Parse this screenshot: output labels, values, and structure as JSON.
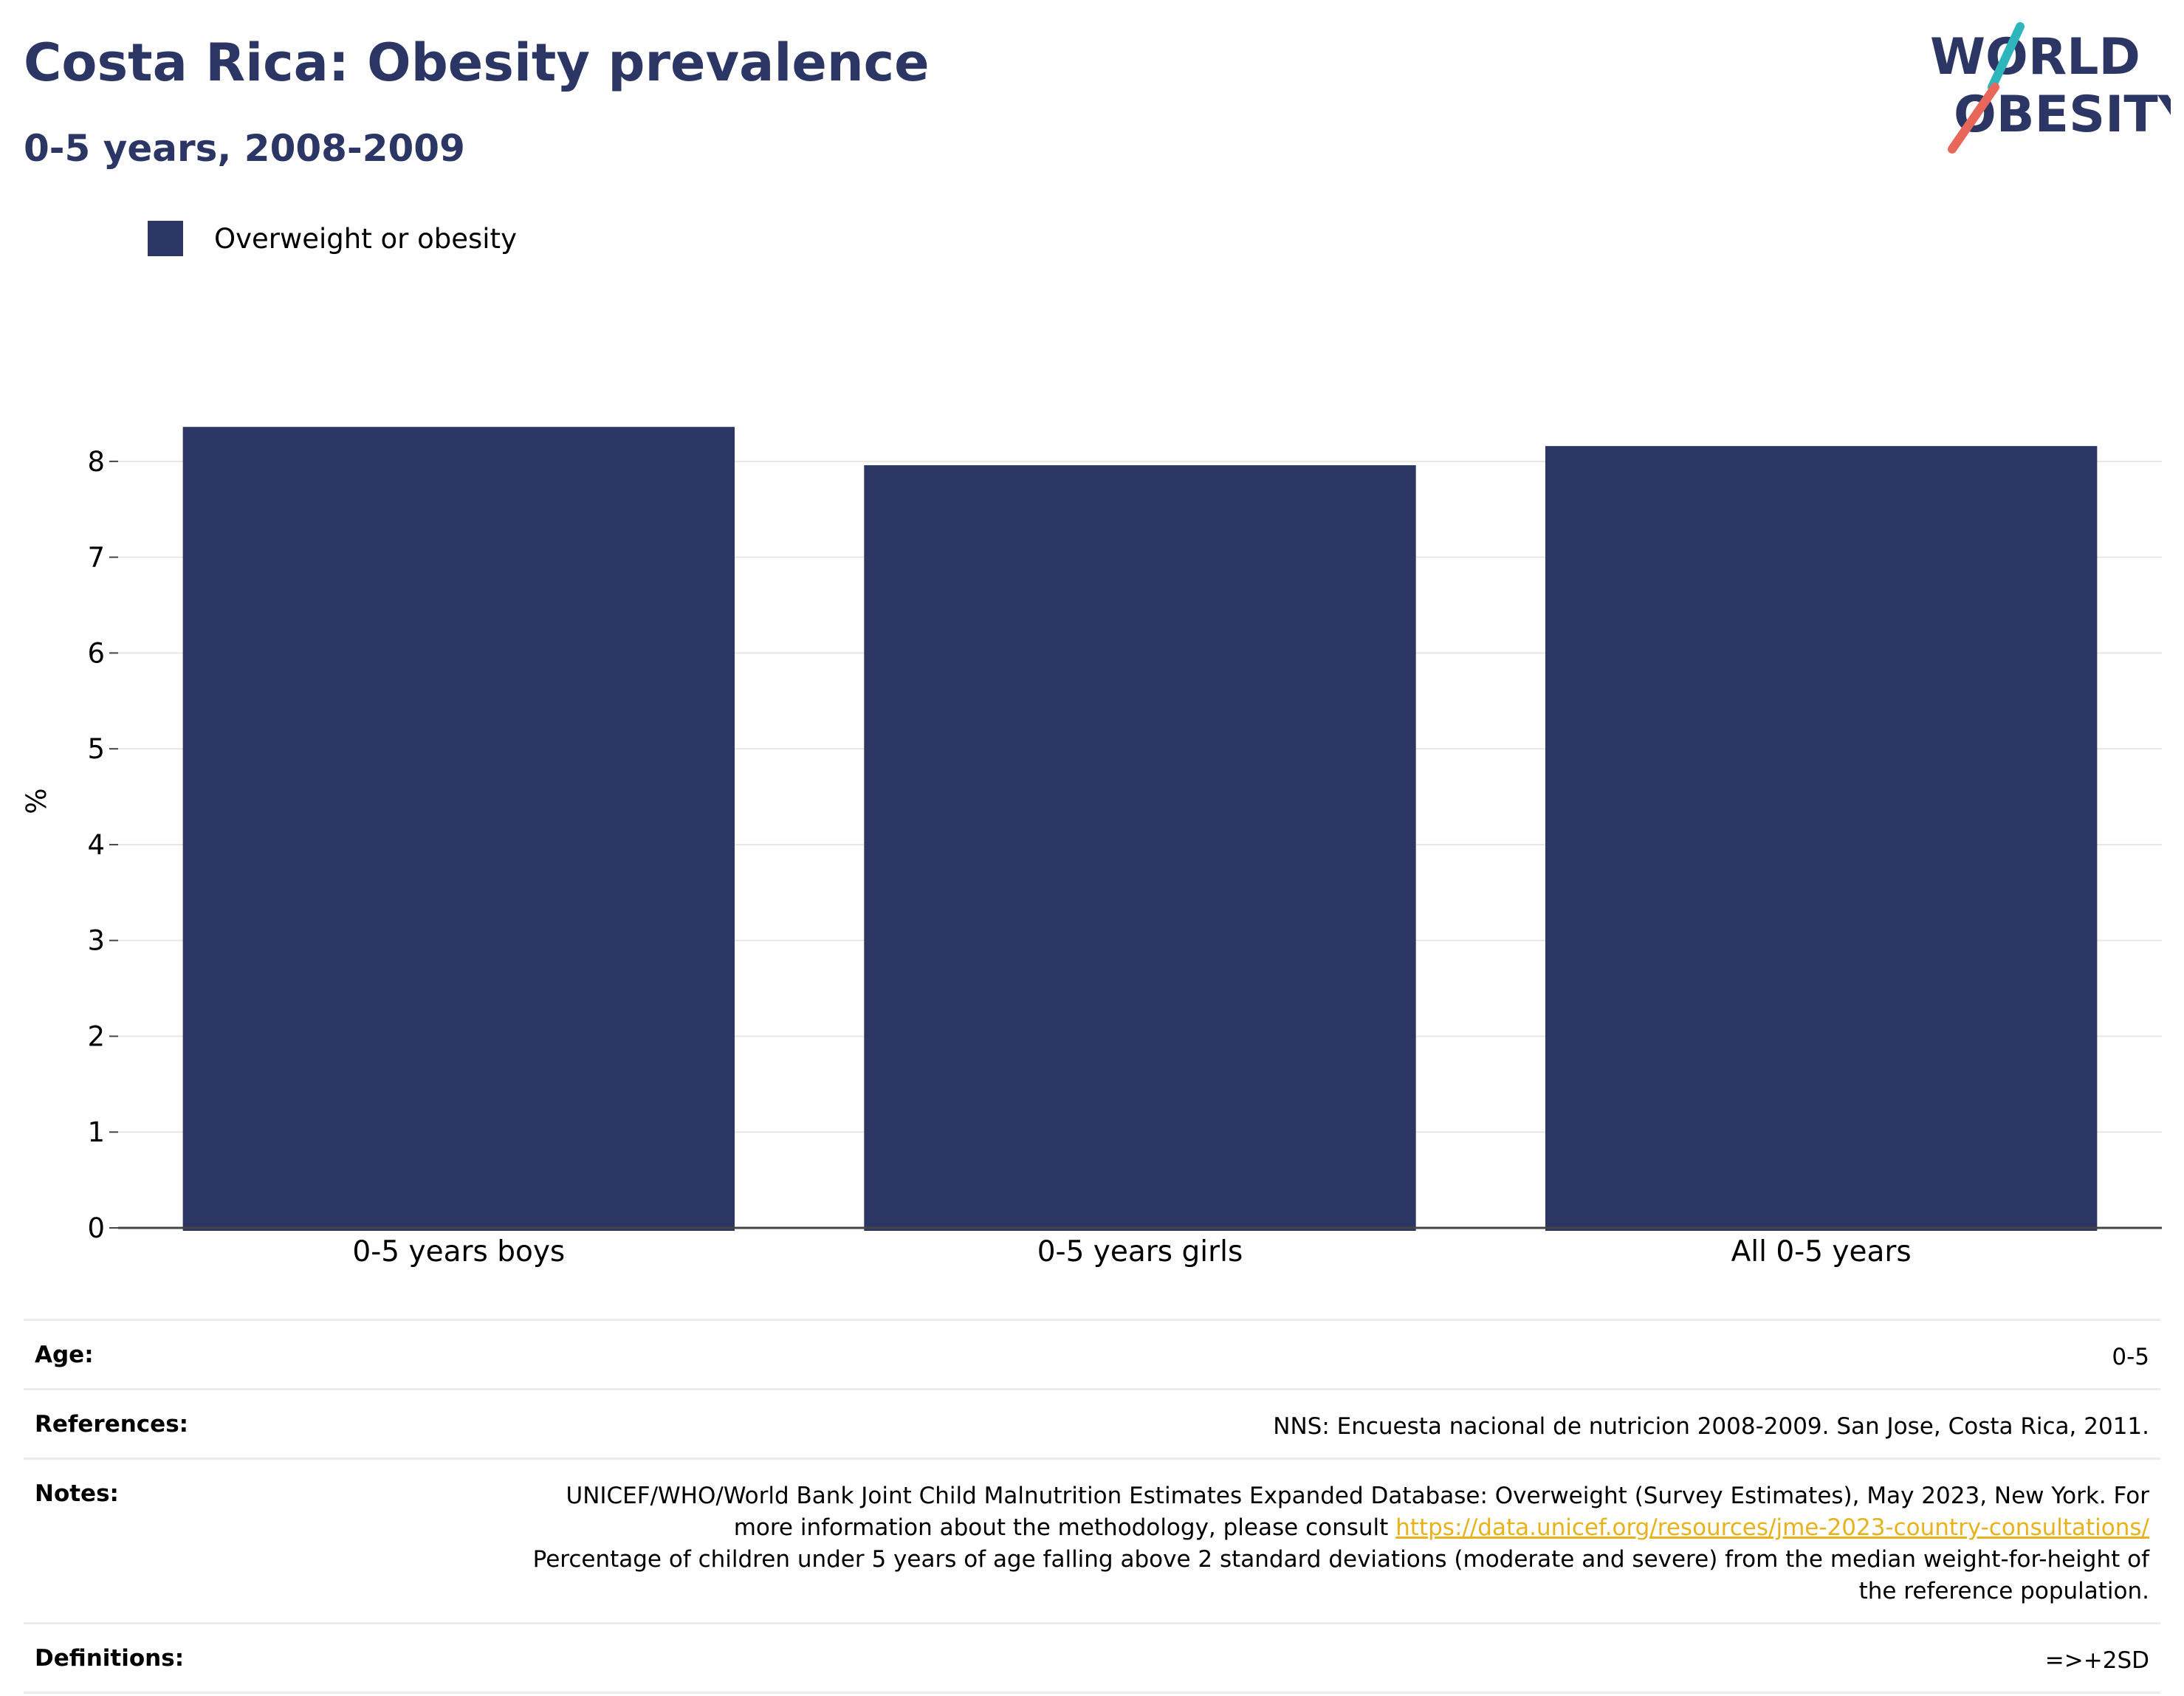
{
  "header": {
    "title": "Costa Rica: Obesity prevalence",
    "subtitle": "0-5 years, 2008-2009"
  },
  "logo": {
    "line1": "WORLD",
    "line2": "OBESITY",
    "slash_colors": [
      "#2fb6bc",
      "#e8675a"
    ]
  },
  "legend": {
    "label": "Overweight or obesity",
    "color": "#2b3665"
  },
  "chart_data": {
    "type": "bar",
    "categories": [
      "0-5 years boys",
      "0-5 years girls",
      "All 0-5 years"
    ],
    "series": [
      {
        "name": "Overweight or obesity",
        "values": [
          8.36,
          7.96,
          8.16
        ],
        "color": "#2b3665"
      }
    ],
    "ylabel": "%",
    "xlabel": "",
    "ylim": [
      0,
      8.5
    ],
    "yticks": [
      0,
      1,
      2,
      3,
      4,
      5,
      6,
      7,
      8
    ],
    "grid": true,
    "legend_position": "top-left"
  },
  "info": {
    "age_label": "Age:",
    "age_value": "0-5",
    "references_label": "References:",
    "references_value": "NNS: Encuesta nacional de nutricion 2008-2009. San Jose, Costa Rica, 2011.",
    "notes_label": "Notes:",
    "notes_text1": "UNICEF/WHO/World Bank Joint Child Malnutrition Estimates Expanded Database: Overweight (Survey Estimates), May 2023, New York. For more information about the methodology, please consult ",
    "notes_link": "https://data.unicef.org/resources/jme-2023-country-consultations/",
    "notes_text2": "Percentage of children under 5 years of age falling above 2 standard deviations (moderate and severe) from the median weight-for-height of the reference population.",
    "definitions_label": "Definitions:",
    "definitions_value": "=>+2SD"
  }
}
